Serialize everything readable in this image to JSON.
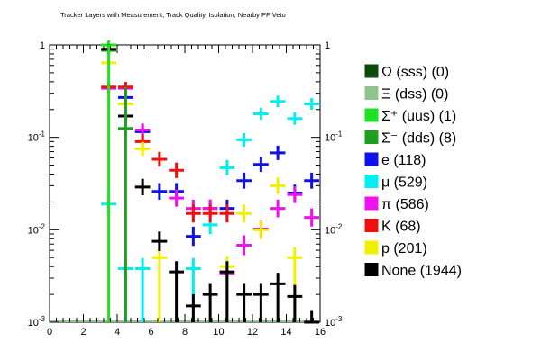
{
  "chart_data": {
    "type": "scatter",
    "title": "Tracker Layers with Measurement, Track Quality, Isolation, Nearby PF Veto",
    "xlabel": "",
    "ylabel": "",
    "xlim": [
      0,
      16
    ],
    "ylim": [
      0.001,
      1
    ],
    "y_scale": "log",
    "grid": false,
    "x_ticks": [
      "0",
      "2",
      "4",
      "6",
      "8",
      "10",
      "12",
      "14",
      "16"
    ],
    "y_ticks": [
      {
        "value": 0.001,
        "base": "10",
        "exp": "-3"
      },
      {
        "value": 0.01,
        "base": "10",
        "exp": "-2"
      },
      {
        "value": 0.1,
        "base": "10",
        "exp": "-1"
      },
      {
        "value": 1,
        "label": "1"
      }
    ],
    "legend_position": "right",
    "series": [
      {
        "name": "Ω (sss) (0)",
        "color": "#0b4a0b",
        "points": []
      },
      {
        "name": "Ξ (dss) (0)",
        "color": "#8fc48f",
        "points": []
      },
      {
        "name": "Σ⁺ (uus) (1)",
        "color": "#22e022",
        "points": [
          [
            3.5,
            1.0
          ]
        ]
      },
      {
        "name": "Σ⁻ (dds) (8)",
        "color": "#1f9f1f",
        "points": [
          [
            3.5,
            0.875
          ],
          [
            4.5,
            0.125
          ]
        ]
      },
      {
        "name": "e (118)",
        "color": "#1010e8",
        "points": [
          [
            4.5,
            0.27
          ],
          [
            5.5,
            0.115
          ],
          [
            6.5,
            0.026
          ],
          [
            7.5,
            0.026
          ],
          [
            8.5,
            0.0085
          ],
          [
            9.5,
            0.017
          ],
          [
            10.5,
            0.017
          ],
          [
            11.5,
            0.034
          ],
          [
            12.5,
            0.051
          ],
          [
            13.5,
            0.068
          ],
          [
            14.5,
            0.025
          ],
          [
            15.5,
            0.034
          ]
        ]
      },
      {
        "name": "μ (529)",
        "color": "#00f0f0",
        "points": [
          [
            3.5,
            0.019
          ],
          [
            4.5,
            0.0038
          ],
          [
            5.5,
            0.0038
          ],
          [
            8.5,
            0.0038
          ],
          [
            9.5,
            0.0113
          ],
          [
            10.5,
            0.047
          ],
          [
            11.5,
            0.094
          ],
          [
            12.5,
            0.18
          ],
          [
            13.5,
            0.245
          ],
          [
            14.5,
            0.16
          ],
          [
            15.5,
            0.23
          ]
        ]
      },
      {
        "name": "π (586)",
        "color": "#f010f0",
        "points": [
          [
            3.5,
            0.34
          ],
          [
            4.5,
            0.34
          ],
          [
            5.5,
            0.12
          ],
          [
            7.5,
            0.022
          ],
          [
            8.5,
            0.017
          ],
          [
            9.5,
            0.017
          ],
          [
            10.5,
            0.0034
          ],
          [
            11.5,
            0.0068
          ],
          [
            12.5,
            0.0102
          ],
          [
            13.5,
            0.017
          ],
          [
            14.5,
            0.024
          ],
          [
            15.5,
            0.0136
          ]
        ]
      },
      {
        "name": "K (68)",
        "color": "#f01010",
        "points": [
          [
            3.5,
            0.35
          ],
          [
            4.5,
            0.35
          ],
          [
            5.5,
            0.09
          ],
          [
            6.5,
            0.058
          ],
          [
            7.5,
            0.044
          ],
          [
            8.5,
            0.015
          ],
          [
            9.5,
            0.015
          ],
          [
            10.5,
            0.015
          ]
        ]
      },
      {
        "name": "p (201)",
        "color": "#f0f000",
        "points": [
          [
            3.5,
            0.64
          ],
          [
            4.5,
            0.23
          ],
          [
            5.5,
            0.075
          ],
          [
            6.5,
            0.005
          ],
          [
            10.5,
            0.004
          ],
          [
            11.5,
            0.015
          ],
          [
            12.5,
            0.01
          ],
          [
            13.5,
            0.03
          ],
          [
            14.5,
            0.005
          ]
        ]
      },
      {
        "name": "None (1944)",
        "color": "#000000",
        "points": [
          [
            3.5,
            0.9
          ],
          [
            4.5,
            0.17
          ],
          [
            5.5,
            0.029
          ],
          [
            6.5,
            0.0075
          ],
          [
            7.5,
            0.0035
          ],
          [
            8.5,
            0.0015
          ],
          [
            9.5,
            0.002
          ],
          [
            10.5,
            0.0035
          ],
          [
            11.5,
            0.002
          ],
          [
            12.5,
            0.002
          ],
          [
            13.5,
            0.0026
          ],
          [
            14.5,
            0.0019
          ],
          [
            15.5,
            0.001
          ]
        ]
      }
    ]
  }
}
